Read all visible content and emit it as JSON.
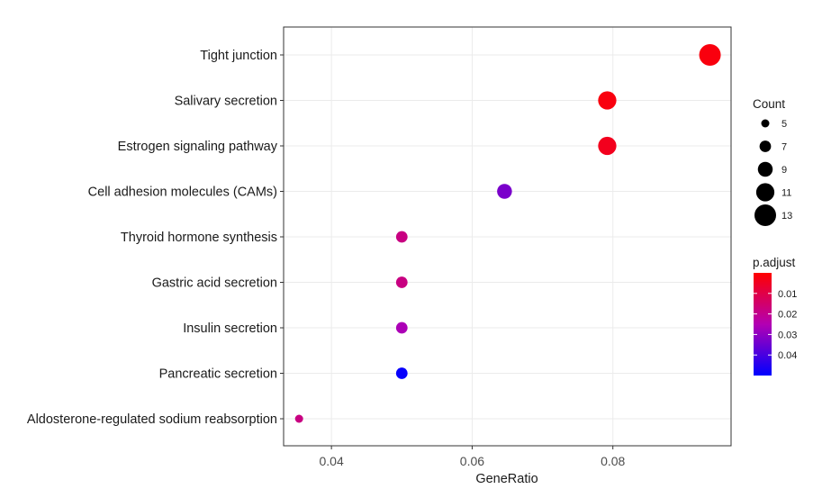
{
  "chart_data": {
    "type": "scatter",
    "xlabel": "GeneRatio",
    "xlim": [
      0.0332,
      0.0968
    ],
    "x_ticks": [
      0.04,
      0.06,
      0.08
    ],
    "x_tick_labels": [
      "0.04",
      "0.06",
      "0.08"
    ],
    "categories": [
      "Tight junction",
      "Salivary secretion",
      "Estrogen signaling pathway",
      "Cell adhesion molecules (CAMs)",
      "Thyroid hormone synthesis",
      "Gastric acid secretion",
      "Insulin secretion",
      "Pancreatic secretion",
      "Aldosterone-regulated sodium reabsorption"
    ],
    "points": [
      {
        "term": "Tight junction",
        "gene_ratio": 0.0938,
        "count": 13,
        "p_adjust": 0.002
      },
      {
        "term": "Salivary secretion",
        "gene_ratio": 0.0792,
        "count": 11,
        "p_adjust": 0.002
      },
      {
        "term": "Estrogen signaling pathway",
        "gene_ratio": 0.0792,
        "count": 11,
        "p_adjust": 0.004
      },
      {
        "term": "Cell adhesion molecules (CAMs)",
        "gene_ratio": 0.0646,
        "count": 9,
        "p_adjust": 0.033
      },
      {
        "term": "Thyroid hormone synthesis",
        "gene_ratio": 0.05,
        "count": 7,
        "p_adjust": 0.018
      },
      {
        "term": "Gastric acid secretion",
        "gene_ratio": 0.05,
        "count": 7,
        "p_adjust": 0.018
      },
      {
        "term": "Insulin secretion",
        "gene_ratio": 0.05,
        "count": 7,
        "p_adjust": 0.026
      },
      {
        "term": "Pancreatic secretion",
        "gene_ratio": 0.05,
        "count": 7,
        "p_adjust": 0.049
      },
      {
        "term": "Aldosterone-regulated sodium reabsorption",
        "gene_ratio": 0.0354,
        "count": 5,
        "p_adjust": 0.018
      }
    ],
    "size_legend": {
      "title": "Count",
      "breaks": [
        5,
        7,
        9,
        11,
        13
      ],
      "labels": [
        "5",
        "7",
        "9",
        "11",
        "13"
      ]
    },
    "color_legend": {
      "title": "p.adjust",
      "range": [
        0.0,
        0.05
      ],
      "breaks": [
        0.01,
        0.02,
        0.03,
        0.04
      ],
      "labels": [
        "0.01",
        "0.02",
        "0.03",
        "0.04"
      ],
      "high_color": "#ff0000",
      "low_color": "#0000ff"
    },
    "grid": true,
    "legend_position": "right"
  }
}
